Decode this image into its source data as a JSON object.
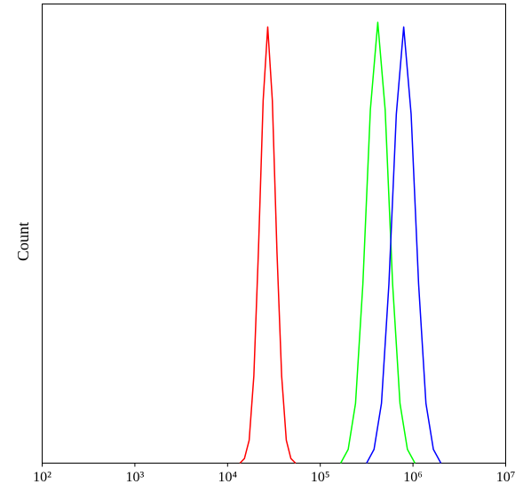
{
  "chart_data": {
    "type": "line",
    "y_label": "Count",
    "xscale": "log",
    "xlim": [
      100,
      10000000
    ],
    "ylim": [
      0,
      100
    ],
    "xticks": [
      {
        "value": 100,
        "label": "10²"
      },
      {
        "value": 1000,
        "label": "10³"
      },
      {
        "value": 10000,
        "label": "10⁴"
      },
      {
        "value": 100000,
        "label": "10⁵"
      },
      {
        "value": 1000000,
        "label": "10⁶"
      },
      {
        "value": 10000000,
        "label": "10⁷"
      }
    ],
    "series": [
      {
        "color": "#ff0000",
        "x": [
          13600,
          15200,
          17100,
          19200,
          21500,
          24200,
          27100,
          30400,
          34100,
          38300,
          43000,
          48200,
          54100
        ],
        "values": [
          0,
          1,
          5,
          19,
          46,
          79,
          95,
          79,
          46,
          19,
          5,
          1,
          0
        ]
      },
      {
        "color": "#00ff00",
        "x": [
          166000,
          200000,
          240000,
          288000,
          347000,
          417000,
          501000,
          603000,
          724000,
          871000,
          1050000
        ],
        "values": [
          0,
          3,
          13,
          39,
          77,
          96,
          77,
          39,
          13,
          3,
          0
        ]
      },
      {
        "color": "#0000ff",
        "x": [
          316000,
          380000,
          457000,
          550000,
          661000,
          794000,
          955000,
          1150000,
          1380000,
          1660000,
          2000000
        ],
        "values": [
          0,
          3,
          13,
          39,
          76,
          95,
          76,
          39,
          13,
          3,
          0
        ]
      }
    ]
  }
}
